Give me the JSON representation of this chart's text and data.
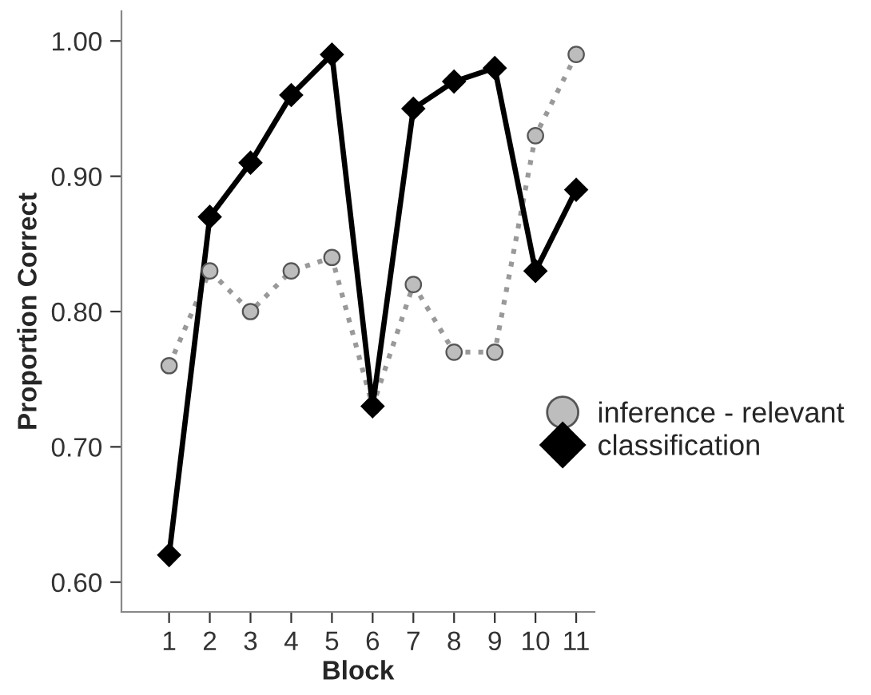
{
  "chart_data": {
    "type": "line",
    "xlabel": "Block",
    "ylabel": "Proportion Correct",
    "categories": [
      "1",
      "2",
      "3",
      "4",
      "5",
      "6",
      "7",
      "8",
      "9",
      "10",
      "11"
    ],
    "series": [
      {
        "name": "inference - relevant",
        "color": "#bdbdbd",
        "marker": "circle",
        "line_style": "dotted",
        "values": [
          0.76,
          0.83,
          0.8,
          0.83,
          0.84,
          0.73,
          0.82,
          0.77,
          0.77,
          0.93,
          0.99
        ]
      },
      {
        "name": "classification",
        "color": "#000000",
        "marker": "diamond",
        "line_style": "solid",
        "values": [
          0.62,
          0.87,
          0.91,
          0.96,
          0.99,
          0.73,
          0.95,
          0.97,
          0.98,
          0.83,
          0.89
        ]
      }
    ],
    "ylim": [
      0.578,
      1.022
    ],
    "yticks": [
      {
        "value": 0.6,
        "label": "0.60"
      },
      {
        "value": 0.7,
        "label": "0.70"
      },
      {
        "value": 0.8,
        "label": "0.80"
      },
      {
        "value": 0.9,
        "label": "0.90"
      },
      {
        "value": 1.0,
        "label": "1.00"
      }
    ],
    "grid": false,
    "legend": "right"
  }
}
